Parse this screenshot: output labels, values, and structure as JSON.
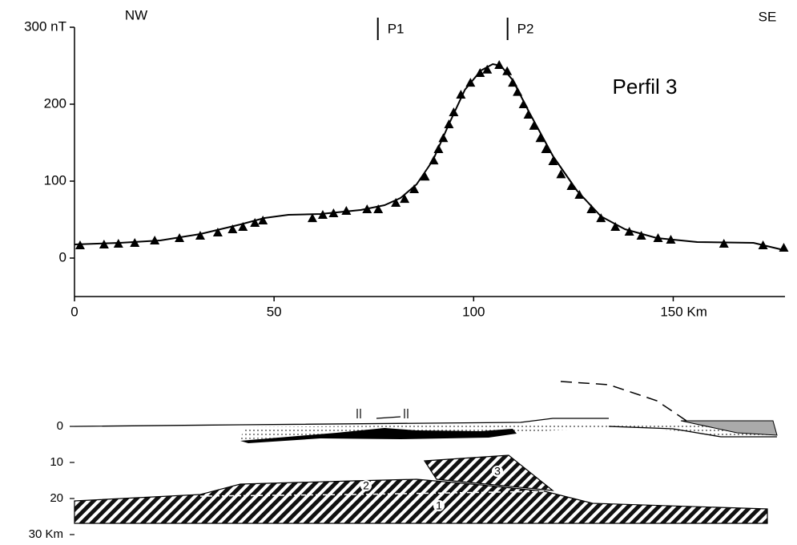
{
  "chart_data": [
    {
      "type": "line",
      "title": "Perfil 3",
      "left_label": "NW",
      "right_label": "SE",
      "markers": [
        {
          "label": "P1",
          "x": 76
        },
        {
          "label": "P2",
          "x": 108.5
        }
      ],
      "xlim": [
        0,
        178
      ],
      "ylim": [
        -50,
        300
      ],
      "xticks": [
        0,
        50,
        100,
        {
          "value": 150,
          "label": "150 Km"
        }
      ],
      "yticks": [
        0,
        100,
        200,
        {
          "value": 300,
          "label": "300 nT"
        }
      ],
      "series": [
        {
          "marker": "triangle",
          "color": "#000000",
          "x": [
            1.4,
            7.4,
            11.0,
            15.1,
            20.1,
            26.3,
            31.5,
            35.9,
            39.6,
            42.2,
            45.2,
            47.2,
            59.6,
            62.2,
            64.9,
            68.1,
            73.3,
            76.1,
            80.5,
            82.7,
            85.1,
            87.8,
            90.0,
            91.2,
            92.4,
            93.8,
            95.0,
            96.8,
            99.2,
            101.6,
            103.4,
            106.4,
            108.4,
            109.8,
            111.0,
            112.5,
            113.7,
            115.1,
            116.7,
            118.1,
            119.9,
            121.9,
            124.5,
            126.5,
            129.5,
            131.9,
            135.5,
            139.0,
            142.0,
            146.2,
            149.4,
            162.7,
            172.5,
            177.7
          ],
          "values": [
            16.7,
            17.7,
            18.8,
            19.8,
            22.9,
            26,
            29.2,
            33.3,
            37.5,
            40.6,
            45.8,
            49,
            52,
            56.3,
            58.3,
            61.5,
            63.5,
            63.5,
            71.9,
            77,
            89.6,
            106,
            127,
            141.7,
            156,
            174,
            189.6,
            212.5,
            228,
            240.6,
            245,
            251,
            243,
            228,
            216,
            200,
            186.5,
            172,
            156,
            141.7,
            126,
            109,
            93.8,
            82.3,
            63.5,
            52,
            40.6,
            34.4,
            29.2,
            26,
            24,
            18.8,
            16.7,
            13.5
          ]
        },
        {
          "marker": "none",
          "color": "#000000",
          "x": [
            0,
            11.4,
            21.5,
            31.5,
            41.6,
            47.6,
            53.6,
            61.6,
            71.7,
            77.7,
            81.7,
            85.7,
            89.8,
            93.8,
            97.8,
            101.8,
            104.8,
            106.8,
            109.8,
            113.9,
            119.9,
            125.9,
            131.9,
            137.9,
            145.9,
            156.0,
            170.1,
            177.7
          ],
          "values": [
            17.7,
            19.8,
            22.9,
            31.3,
            43.8,
            52.1,
            56.3,
            57.3,
            62.5,
            68.8,
            78.1,
            95.8,
            127.1,
            174,
            218.8,
            243.8,
            252.1,
            250,
            231.3,
            189.6,
            132.3,
            87.5,
            54.2,
            37.5,
            26,
            20.8,
            19.8,
            10.4
          ]
        }
      ]
    },
    {
      "type": "section",
      "ylim": [
        0,
        30
      ],
      "yticks": [
        0,
        10,
        20,
        {
          "value": 30,
          "label": "30 Km"
        }
      ],
      "body_labels": [
        "1",
        "2",
        "3"
      ]
    }
  ]
}
